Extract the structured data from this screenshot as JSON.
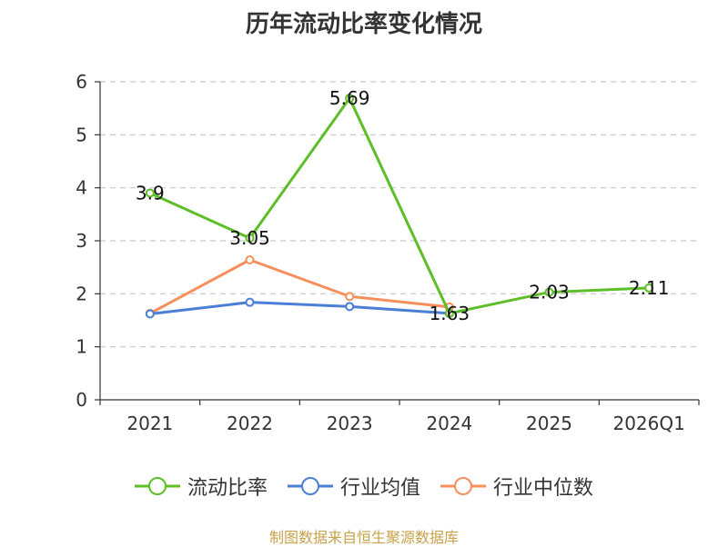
{
  "title": "历年流动比率变化情况",
  "source": "制图数据来自恒生聚源数据库",
  "chart_data": {
    "type": "line",
    "categories": [
      "2021",
      "2022",
      "2023",
      "2024",
      "2025",
      "2026Q1"
    ],
    "yticks": [
      "0",
      "1",
      "2",
      "3",
      "4",
      "5",
      "6"
    ],
    "ylim": [
      0,
      6
    ],
    "grid": true,
    "legend_position": "bottom",
    "series": [
      {
        "name": "流动比率",
        "color": "#5dbe28",
        "values": [
          3.9,
          3.05,
          5.69,
          1.63,
          2.03,
          2.11
        ],
        "labels": [
          "3.9",
          "3.05",
          "5.69",
          "1.63",
          "2.03",
          "2.11"
        ]
      },
      {
        "name": "行业均值",
        "color": "#4b7fd6",
        "values": [
          1.62,
          1.84,
          1.76,
          1.63,
          null,
          null
        ]
      },
      {
        "name": "行业中位数",
        "color": "#f68f5c",
        "values": [
          1.63,
          2.64,
          1.95,
          1.75,
          null,
          null
        ]
      }
    ]
  }
}
